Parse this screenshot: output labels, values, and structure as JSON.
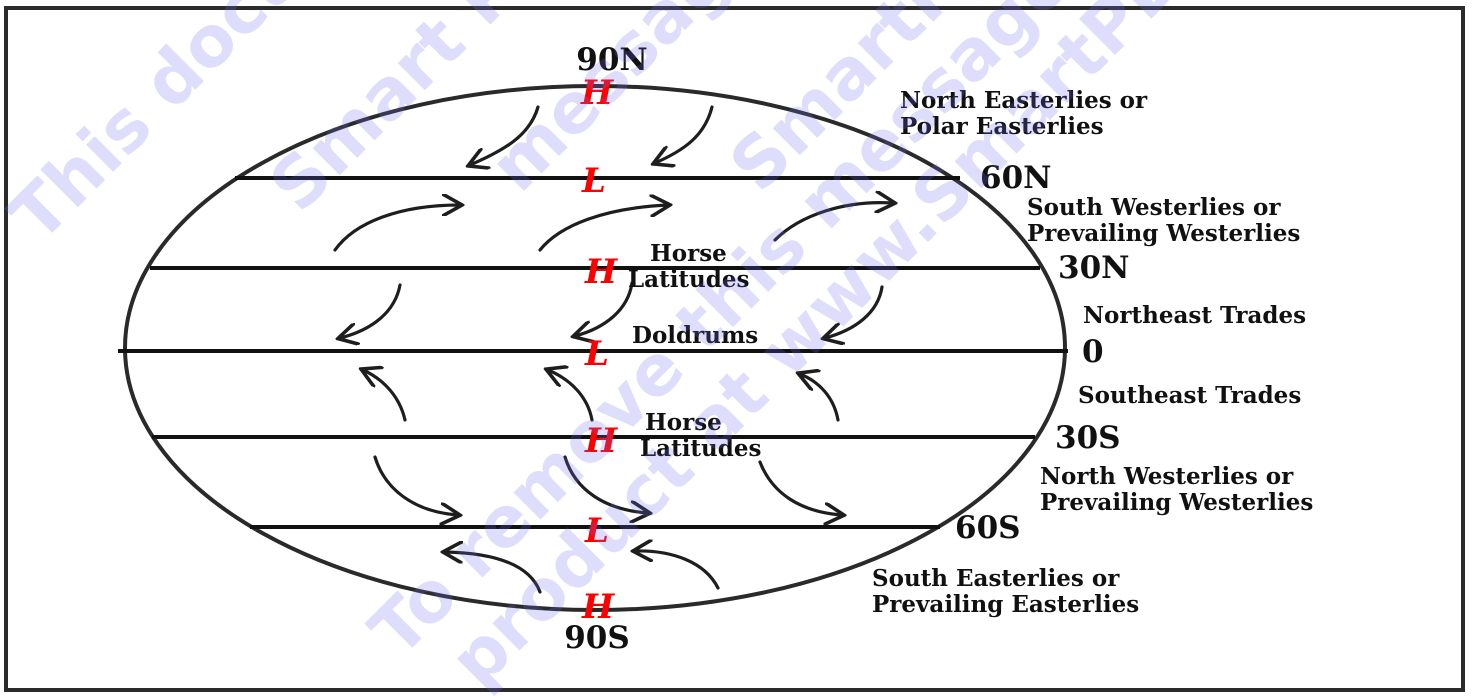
{
  "colors": {
    "pressure": "#ff0000",
    "ink": "#111111",
    "watermark": "#6f6ff2"
  },
  "poles": {
    "north": "90N",
    "south": "90S"
  },
  "latitudes": {
    "n60": "60N",
    "n30": "30N",
    "eq": "0",
    "s30": "30S",
    "s60": "60S"
  },
  "pressure": {
    "high": "H",
    "low": "L"
  },
  "winds": {
    "polar_n": [
      "North Easterlies or",
      "Polar Easterlies"
    ],
    "westerlies_n": [
      "South Westerlies or",
      "Prevailing Westerlies"
    ],
    "trades_n": "Northeast Trades",
    "trades_s": "Southeast Trades",
    "westerlies_s": [
      "North Westerlies or",
      "Prevailing Westerlies"
    ],
    "polar_s": [
      "South Easterlies or",
      "Prevailing Easterlies"
    ]
  },
  "zones": {
    "horse_n": [
      "Horse",
      "Latitudes"
    ],
    "doldrums": "Doldrums",
    "horse_s": [
      "Horse",
      "Latitudes"
    ]
  },
  "watermark": {
    "line1": "This document",
    "line2": "Smart PDF",
    "line3": "message p",
    "line4": "SmartPDFCre",
    "line5": "To remove this message",
    "line6": "product at www.SmartPDFCreator"
  }
}
